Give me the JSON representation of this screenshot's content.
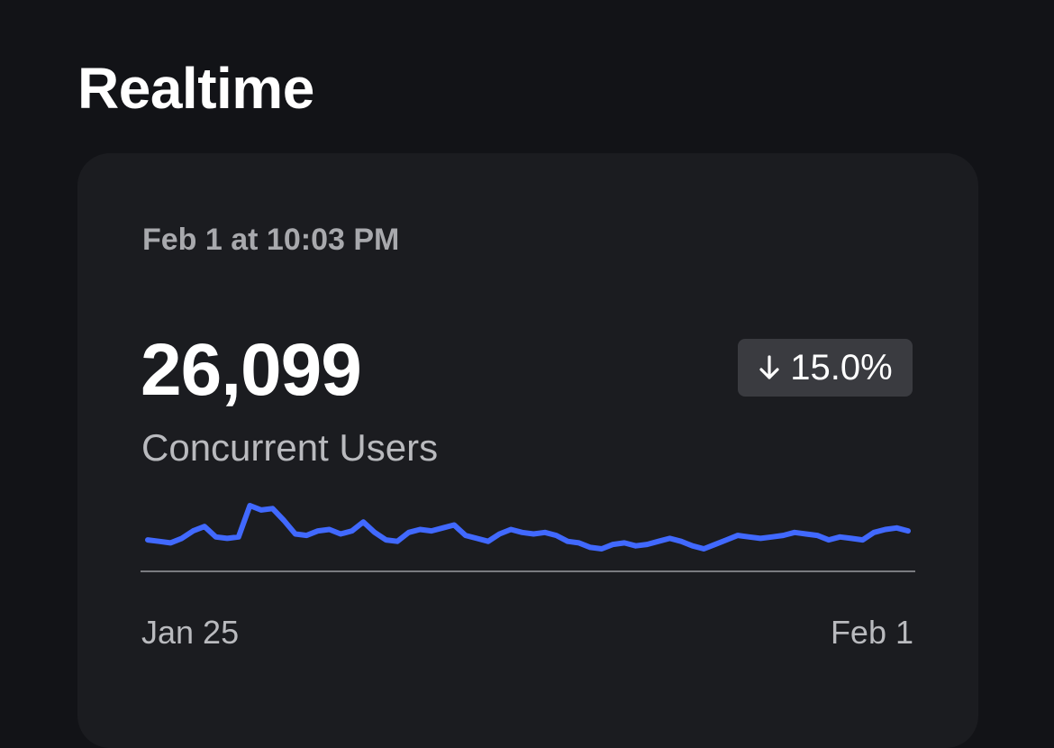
{
  "page": {
    "title": "Realtime"
  },
  "card": {
    "timestamp": "Feb 1 at 10:03 PM",
    "metric_value": "26,099",
    "metric_label": "Concurrent Users",
    "change": {
      "direction": "down",
      "value": "15.0%",
      "icon": "arrow-down-icon"
    }
  },
  "colors": {
    "background": "#121317",
    "card": "#1b1c20",
    "line": "#4169ff",
    "axis": "#7a7b80",
    "badge": "#3a3b40"
  },
  "chart_data": {
    "type": "line",
    "title": "",
    "xlabel": "",
    "ylabel": "",
    "x_labels": [
      "Jan 25",
      "Feb 1"
    ],
    "series": [
      {
        "values": [
          29,
          28,
          27,
          30,
          35,
          38,
          31,
          30,
          31,
          52,
          49,
          50,
          42,
          33,
          32,
          35,
          36,
          33,
          35,
          41,
          34,
          29,
          28,
          34,
          36,
          35,
          37,
          39,
          32,
          30,
          28,
          33,
          36,
          34,
          33,
          34,
          32,
          28,
          27,
          24,
          23,
          26,
          27,
          25,
          26,
          28,
          30,
          28,
          25,
          23,
          26,
          29,
          32,
          31,
          30,
          31,
          32,
          34,
          33,
          32,
          29,
          31,
          30,
          29,
          34,
          36,
          37,
          35
        ]
      }
    ]
  }
}
